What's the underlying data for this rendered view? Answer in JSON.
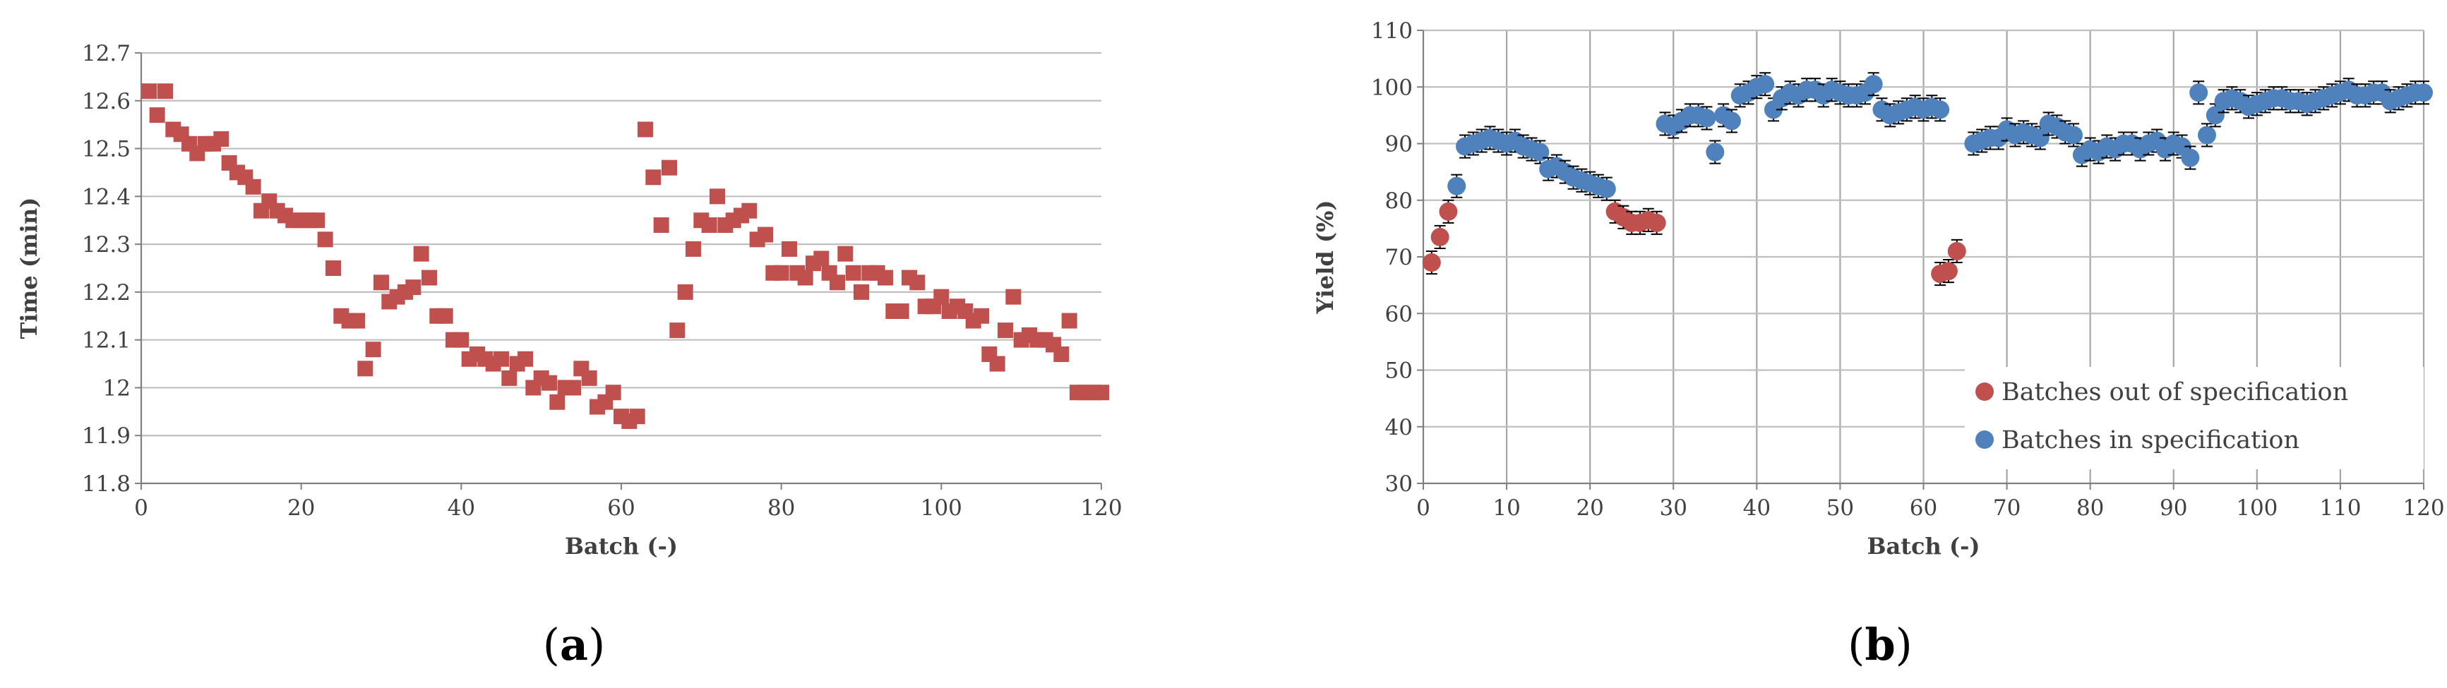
{
  "chart_data": [
    {
      "type": "scatter",
      "panel_label": "(a)",
      "xlabel": "Batch (-)",
      "ylabel": "Time (min)",
      "xlim": [
        0,
        120
      ],
      "ylim": [
        11.8,
        12.7
      ],
      "xticks": [
        0,
        20,
        40,
        60,
        80,
        100,
        120
      ],
      "xtick_labels": [
        "0",
        "20",
        "40",
        "60",
        "80",
        "100",
        "120"
      ],
      "yticks": [
        11.8,
        11.9,
        12.0,
        12.1,
        12.2,
        12.3,
        12.4,
        12.5,
        12.6,
        12.7
      ],
      "ytick_labels": [
        "11.8",
        "11.9",
        "12",
        "12.1",
        "12.2",
        "12.3",
        "12.4",
        "12.5",
        "12.6",
        "12.7"
      ],
      "grid": true,
      "legend": "none",
      "color": "#c0504d",
      "marker": "square",
      "error": 0.01,
      "series": [
        {
          "x": [
            1,
            2,
            3,
            4,
            5,
            6,
            7,
            8,
            9,
            10,
            11,
            12,
            13,
            14,
            15,
            16,
            17,
            18,
            19,
            20,
            21,
            22,
            23,
            24,
            25,
            26,
            27,
            28,
            29,
            30,
            31,
            32,
            33,
            34,
            35,
            36,
            37,
            38,
            39,
            40,
            41,
            42,
            43,
            44,
            45,
            46,
            47,
            48,
            49,
            50,
            51,
            52,
            53,
            54,
            55,
            56,
            57,
            58,
            59,
            60,
            61,
            62,
            63,
            64,
            65,
            66,
            67,
            68,
            69,
            70,
            71,
            72,
            73,
            74,
            75,
            76,
            77,
            78,
            79,
            80,
            81,
            82,
            83,
            84,
            85,
            86,
            87,
            88,
            89,
            90,
            91,
            92,
            93,
            94,
            95,
            96,
            97,
            98,
            99,
            100,
            101,
            102,
            103,
            104,
            105,
            106,
            107,
            108,
            109,
            110,
            111,
            112,
            113,
            114,
            115,
            116,
            117,
            118,
            119,
            120
          ],
          "y": [
            12.62,
            12.57,
            12.62,
            12.54,
            12.53,
            12.51,
            12.49,
            12.51,
            12.51,
            12.52,
            12.47,
            12.45,
            12.44,
            12.42,
            12.37,
            12.39,
            12.37,
            12.36,
            12.35,
            12.35,
            12.35,
            12.35,
            12.31,
            12.25,
            12.15,
            12.14,
            12.14,
            12.04,
            12.08,
            12.22,
            12.18,
            12.19,
            12.2,
            12.21,
            12.28,
            12.23,
            12.15,
            12.15,
            12.1,
            12.1,
            12.06,
            12.07,
            12.06,
            12.05,
            12.06,
            12.02,
            12.05,
            12.06,
            12.0,
            12.02,
            12.01,
            11.97,
            12.0,
            12.0,
            12.04,
            12.02,
            11.96,
            11.97,
            11.99,
            11.94,
            11.93,
            11.94,
            12.54,
            12.44,
            12.34,
            12.46,
            12.12,
            12.2,
            12.29,
            12.35,
            12.34,
            12.4,
            12.34,
            12.35,
            12.36,
            12.37,
            12.31,
            12.32,
            12.24,
            12.24,
            12.29,
            12.24,
            12.23,
            12.26,
            12.27,
            12.24,
            12.22,
            12.28,
            12.24,
            12.2,
            12.24,
            12.24,
            12.23,
            12.16,
            12.16,
            12.23,
            12.22,
            12.17,
            12.17,
            12.19,
            12.16,
            12.17,
            12.16,
            12.14,
            12.15,
            12.07,
            12.05,
            12.12,
            12.19,
            12.1,
            12.11,
            12.1,
            12.1,
            12.09,
            12.07,
            12.14,
            11.99,
            11.99,
            11.99,
            11.99
          ]
        }
      ]
    },
    {
      "type": "scatter",
      "panel_label": "(b)",
      "xlabel": "Batch (-)",
      "ylabel": "Yield (%)",
      "xlim": [
        0,
        120
      ],
      "ylim": [
        30,
        110
      ],
      "xticks": [
        0,
        10,
        20,
        30,
        40,
        50,
        60,
        70,
        80,
        90,
        100,
        110,
        120
      ],
      "xtick_labels": [
        "0",
        "10",
        "20",
        "30",
        "40",
        "50",
        "60",
        "70",
        "80",
        "90",
        "100",
        "110",
        "120"
      ],
      "yticks": [
        30,
        40,
        50,
        60,
        70,
        80,
        90,
        100,
        110
      ],
      "ytick_labels": [
        "30",
        "40",
        "50",
        "60",
        "70",
        "80",
        "90",
        "100",
        "110"
      ],
      "grid": true,
      "legend": "bottom-right",
      "marker": "circle",
      "error": 2,
      "series": [
        {
          "name": "Batches out of specification",
          "color": "#c0504d",
          "x": [
            1,
            2,
            3,
            23,
            24,
            25,
            26,
            27,
            28,
            62,
            63,
            64
          ],
          "y": [
            69,
            73.5,
            78,
            78,
            77,
            76,
            76,
            76.5,
            76,
            67,
            67.5,
            71
          ]
        },
        {
          "name": "Batches in specification",
          "color": "#4f81bd",
          "x": [
            4,
            5,
            6,
            7,
            8,
            9,
            10,
            11,
            12,
            13,
            14,
            15,
            16,
            17,
            18,
            19,
            20,
            21,
            22,
            29,
            30,
            31,
            32,
            33,
            34,
            35,
            36,
            37,
            38,
            39,
            40,
            41,
            42,
            43,
            44,
            45,
            46,
            47,
            48,
            49,
            50,
            51,
            52,
            53,
            54,
            55,
            56,
            57,
            58,
            59,
            60,
            61,
            62,
            66,
            67,
            68,
            69,
            70,
            71,
            72,
            73,
            74,
            75,
            76,
            77,
            78,
            79,
            80,
            81,
            82,
            83,
            84,
            85,
            86,
            87,
            88,
            89,
            90,
            91,
            92,
            93,
            94,
            95,
            96,
            97,
            98,
            99,
            100,
            101,
            102,
            103,
            104,
            105,
            106,
            107,
            108,
            109,
            110,
            111,
            112,
            113,
            114,
            115,
            116,
            117,
            118,
            119,
            120
          ],
          "y": [
            82.5,
            89.5,
            90,
            90.5,
            91,
            90.5,
            90,
            90.5,
            89.5,
            89,
            88.5,
            85.5,
            86,
            85,
            84,
            83.5,
            83,
            82.5,
            82,
            93.5,
            93,
            94,
            95,
            95,
            94.5,
            88.5,
            95,
            94,
            98.5,
            99,
            100,
            100.5,
            96,
            98,
            99,
            98.5,
            99.5,
            99.5,
            98.5,
            99.5,
            99,
            98.5,
            98.5,
            99,
            100.5,
            96,
            95,
            95.5,
            96,
            96.5,
            96,
            96.5,
            96,
            90,
            90.5,
            91,
            91,
            92.5,
            91.5,
            92,
            91.5,
            91,
            93.5,
            93,
            92,
            91.5,
            88,
            89,
            88.5,
            89.5,
            89,
            90,
            90,
            89,
            90,
            90.5,
            89,
            90,
            89.5,
            87.5,
            99,
            91.5,
            95,
            97.5,
            98,
            97.5,
            96.5,
            97,
            97.5,
            98,
            98,
            97.5,
            97.5,
            97,
            97.5,
            98,
            98.5,
            99,
            99.5,
            98.5,
            98.5,
            99,
            99,
            97.5,
            98,
            98.5,
            99,
            99
          ]
        }
      ]
    }
  ]
}
